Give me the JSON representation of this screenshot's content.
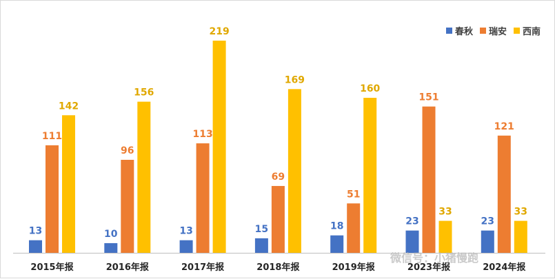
{
  "chart_data": {
    "type": "bar",
    "categories": [
      "2015年报",
      "2016年报",
      "2017年报",
      "2018年报",
      "2019年报",
      "2023年报",
      "2024年报"
    ],
    "series": [
      {
        "name": "春秋",
        "values": [
          13,
          10,
          13,
          15,
          18,
          23,
          23
        ],
        "color": "#4472c4",
        "label_color": "#4472c4"
      },
      {
        "name": "瑞安",
        "values": [
          111,
          96,
          113,
          69,
          51,
          151,
          121
        ],
        "color": "#ed7d31",
        "label_color": "#ed7d31"
      },
      {
        "name": "西南",
        "values": [
          142,
          156,
          219,
          169,
          160,
          33,
          33
        ],
        "color": "#ffc000",
        "label_color": "#e0a800"
      }
    ],
    "ylim": [
      0,
      230
    ],
    "grid": false,
    "legend_position": "top-right",
    "xlabel": "",
    "ylabel": ""
  },
  "watermark": "微信号：小猪慢跑"
}
